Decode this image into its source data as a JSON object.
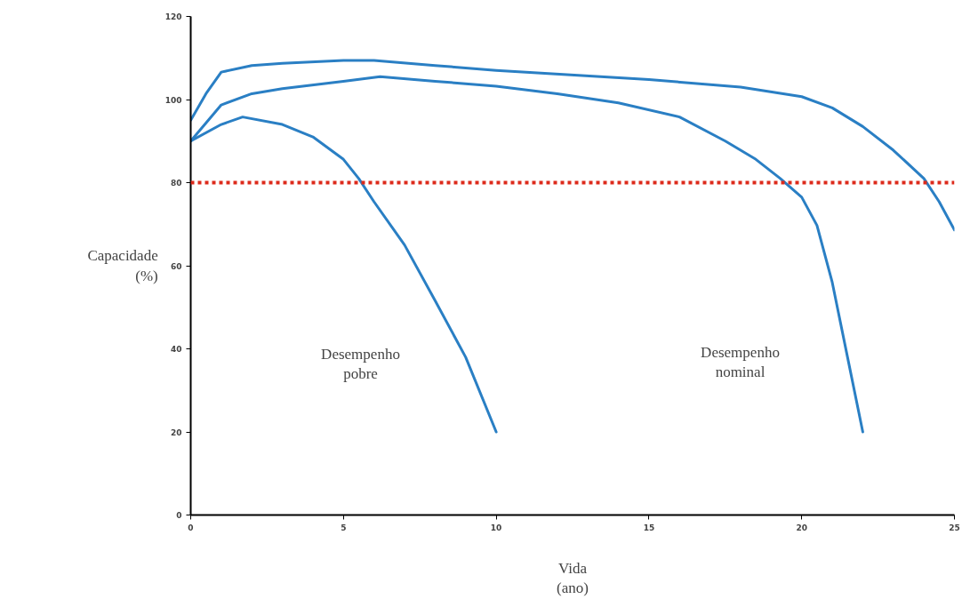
{
  "chart_data": {
    "type": "line",
    "xlabel": "Vida\n(ano)",
    "ylabel": "Capacidade\n(%)",
    "xlim": [
      0,
      25
    ],
    "ylim": [
      0,
      120
    ],
    "xticks": [
      0,
      5,
      10,
      15,
      20,
      25
    ],
    "yticks": [
      0,
      20,
      40,
      60,
      80,
      100,
      120
    ],
    "grid": false,
    "marker": "none",
    "line_style": "solid",
    "series": [
      {
        "color": "#2a7fc4",
        "x": [
          0,
          0.5,
          1,
          2,
          3,
          5,
          6,
          8,
          10,
          15,
          18,
          20,
          21,
          22,
          23,
          24,
          24.5,
          25
        ],
        "values": [
          95,
          101.4,
          106.6,
          108.2,
          108.7,
          109.4,
          109.4,
          108.2,
          107,
          104.8,
          103,
          100.7,
          98,
          93.5,
          87.8,
          81,
          75.4,
          68.6
        ]
      },
      {
        "color": "#2a7fc4",
        "x": [
          0,
          1,
          2,
          3,
          5,
          6.2,
          8,
          10,
          12,
          14,
          16,
          17.5,
          18.5,
          19.3,
          20,
          20.5,
          21,
          21.5,
          22
        ],
        "values": [
          90,
          98.7,
          101.4,
          102.6,
          104.4,
          105.5,
          104.4,
          103.2,
          101.4,
          99.2,
          95.8,
          90,
          85.6,
          81,
          76.5,
          69.7,
          56,
          38,
          20
        ]
      },
      {
        "color": "#2a7fc4",
        "x": [
          0,
          1,
          1.7,
          3,
          4,
          5,
          5.5,
          6,
          7,
          8,
          9,
          10
        ],
        "values": [
          90,
          94,
          95.8,
          94,
          91,
          85.6,
          81,
          75.4,
          65,
          51.6,
          38,
          20
        ]
      }
    ],
    "ref_lines": [
      {
        "axis": "y",
        "value": 80,
        "color": "#dd2a1b",
        "line_style": "dotted"
      }
    ],
    "annotations": [
      "Desempenho\npobre",
      "Desempenho\nnominal"
    ]
  }
}
